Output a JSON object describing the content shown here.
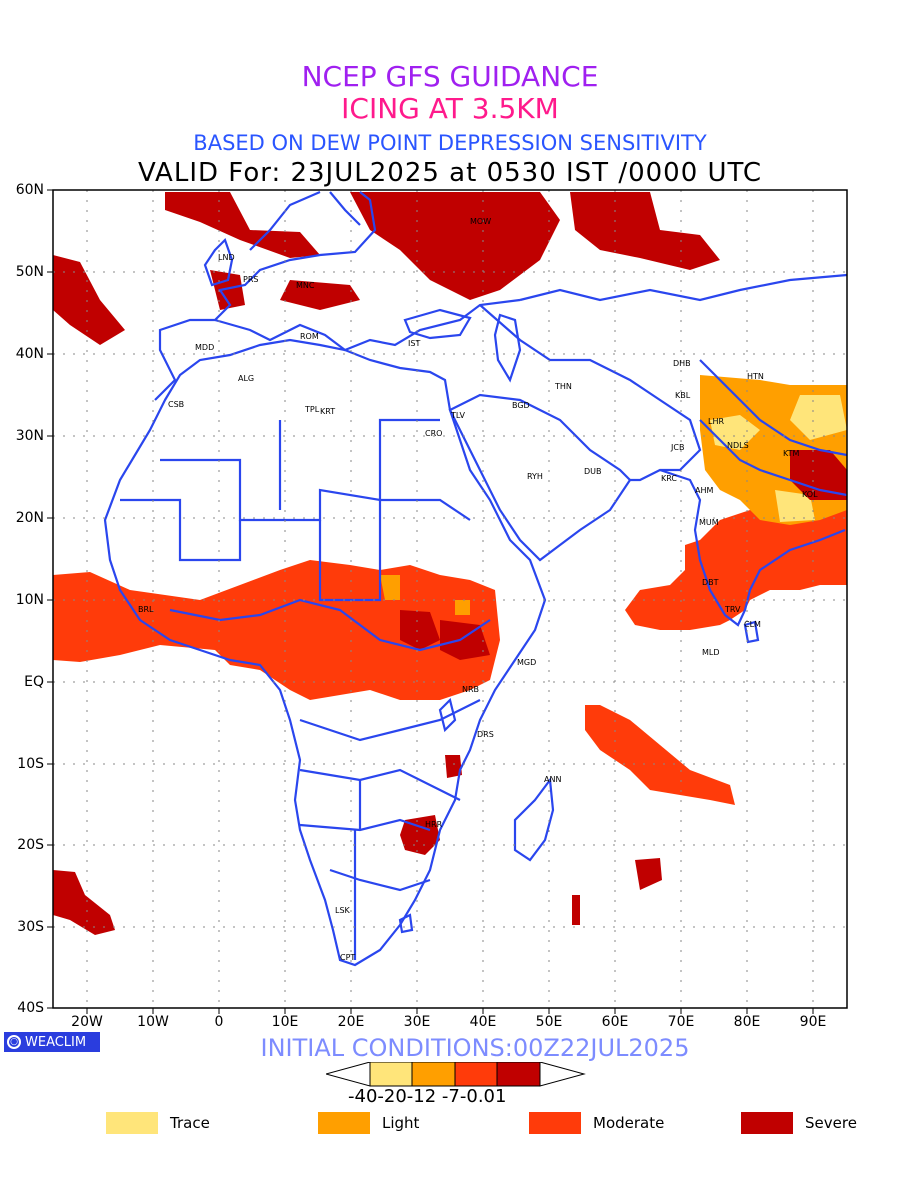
{
  "header": {
    "line1": "NCEP GFS GUIDANCE",
    "line2": "ICING AT 3.5KM",
    "line3": "BASED ON DEW POINT DEPRESSION SENSITIVITY",
    "line4": "VALID For: 23JUL2025 at 0530 IST /0000 UTC"
  },
  "axes": {
    "lat_labels": [
      "60N",
      "50N",
      "40N",
      "30N",
      "20N",
      "10N",
      "EQ",
      "10S",
      "20S",
      "30S",
      "40S"
    ],
    "lon_labels": [
      "20W",
      "10W",
      "0",
      "10E",
      "20E",
      "30E",
      "40E",
      "50E",
      "60E",
      "70E",
      "80E",
      "90E"
    ]
  },
  "stations": [
    "MOW",
    "LND",
    "PRS",
    "MNC",
    "ROM",
    "MDD",
    "IST",
    "ALG",
    "CSB",
    "TPL",
    "KRT",
    "TLV",
    "CRO",
    "BGD",
    "THN",
    "DHB",
    "HTN",
    "KBL",
    "LHR",
    "NDLS",
    "JCB",
    "KTM",
    "RYH",
    "DUB",
    "KRC",
    "AHM",
    "KOL",
    "MUM",
    "BRL",
    "DBT",
    "TRV",
    "CLM",
    "MLD",
    "MGD",
    "NRB",
    "DRS",
    "ANN",
    "HRR",
    "LSK",
    "CPT"
  ],
  "brand": "WEACLIM",
  "initial_conditions": "INITIAL CONDITIONS:00Z22JUL2025",
  "colorbar": {
    "tick_text": "-40-20-12 -7-0.01",
    "colors": [
      "#ffe57a",
      "#ff9f00",
      "#ff3b0a",
      "#c00000"
    ]
  },
  "legend": [
    {
      "label": "Trace",
      "color": "#ffe57a"
    },
    {
      "label": "Light",
      "color": "#ff9f00"
    },
    {
      "label": "Moderate",
      "color": "#ff3b0a"
    },
    {
      "label": "Severe",
      "color": "#c00000"
    }
  ],
  "colors": {
    "border": "#2a46ee",
    "frame": "#000000"
  }
}
